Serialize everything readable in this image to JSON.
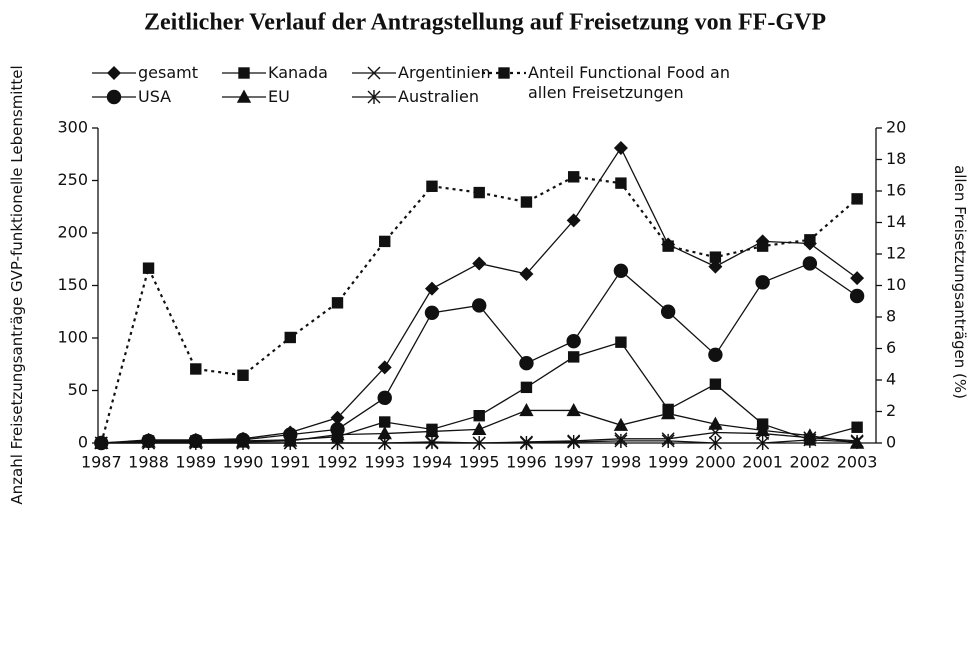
{
  "chart_data": {
    "type": "line",
    "title": "Zeitlicher Verlauf der Antragstellung auf Freisetzung von FF-GVP",
    "y_label": "Anzahl Freisetzungsanträge GVP-funktionelle Lebensmittel",
    "y2_label": "Anteil funktionelle Lebensmittel an allen Freisetzungsanträgen (%)",
    "x": [
      1987,
      1988,
      1989,
      1990,
      1991,
      1992,
      1993,
      1994,
      1995,
      1996,
      1997,
      1998,
      1999,
      2000,
      2001,
      2002,
      2003
    ],
    "xlim": [
      1986.93,
      2003.4
    ],
    "xticks": [
      1987,
      1988,
      1989,
      1990,
      1991,
      1992,
      1993,
      1994,
      1995,
      1996,
      1997,
      1998,
      1999,
      2000,
      2001,
      2002,
      2003
    ],
    "ylim": [
      0,
      300
    ],
    "yticks": [
      0,
      50,
      100,
      150,
      200,
      250,
      300
    ],
    "y2lim": [
      0,
      20
    ],
    "y2ticks": [
      0,
      2,
      4,
      6,
      8,
      10,
      12,
      14,
      16,
      18,
      20
    ],
    "series": [
      {
        "name": "gesamt",
        "color": "#111111",
        "marker": "diamond",
        "values": [
          0,
          3,
          3,
          4,
          10,
          24,
          72,
          147,
          171,
          161,
          212,
          281,
          189,
          168,
          192,
          190,
          157
        ]
      },
      {
        "name": "USA",
        "color": "#111111",
        "marker": "circle",
        "values": [
          0,
          2,
          2,
          3,
          8,
          13,
          43,
          124,
          131,
          76,
          97,
          164,
          125,
          84,
          153,
          171,
          140
        ]
      },
      {
        "name": "Kanada",
        "color": "#111111",
        "marker": "square",
        "values": [
          0,
          2,
          2,
          2,
          3,
          6,
          20,
          13,
          26,
          53,
          82,
          96,
          32,
          56,
          18,
          3,
          15
        ]
      },
      {
        "name": "EU",
        "color": "#111111",
        "marker": "triangle",
        "values": [
          0,
          1,
          1,
          1,
          2,
          8,
          9,
          11,
          13,
          31,
          31,
          17,
          28,
          18,
          12,
          7,
          0
        ]
      },
      {
        "name": "Argentinien",
        "color": "#111111",
        "marker": "x",
        "values": [
          0,
          0,
          0,
          0,
          0,
          0,
          0,
          0,
          0,
          1,
          2,
          4,
          4,
          10,
          9,
          5,
          2
        ]
      },
      {
        "name": "Australien",
        "color": "#111111",
        "marker": "asterisk",
        "values": [
          0,
          0,
          0,
          0,
          0,
          0,
          0,
          1,
          0,
          0,
          1,
          2,
          2,
          0,
          0,
          3,
          1
        ]
      },
      {
        "name": "Anteil Functional Food an allen Freisetzungen",
        "color": "#111111",
        "marker": "square",
        "dashed": true,
        "axis": "y2",
        "values": [
          0,
          11.1,
          4.7,
          4.3,
          6.7,
          8.9,
          12.8,
          16.3,
          15.9,
          15.3,
          16.9,
          16.5,
          12.5,
          11.8,
          12.5,
          12.9,
          15.5
        ]
      }
    ]
  }
}
